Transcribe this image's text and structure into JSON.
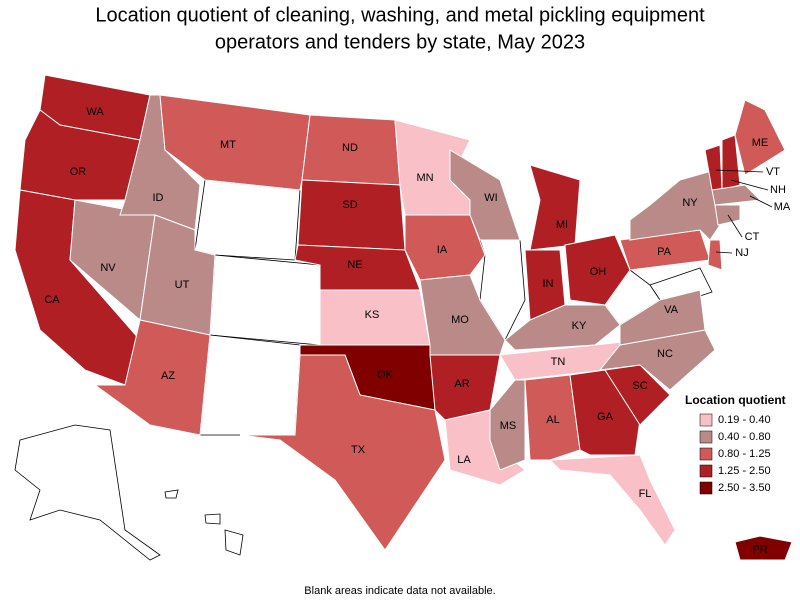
{
  "title": [
    "Location quotient of cleaning, washing, and metal pickling equipment",
    "operators and tenders by state, May 2023"
  ],
  "legend": {
    "title": "Location quotient",
    "items": [
      {
        "label": "0.19 - 0.40",
        "color": "#f9c0c7"
      },
      {
        "label": "0.40 - 0.80",
        "color": "#b98a88"
      },
      {
        "label": "0.80 - 1.25",
        "color": "#d05a58"
      },
      {
        "label": "1.25 - 2.50",
        "color": "#b01f24"
      },
      {
        "label": "2.50 - 3.50",
        "color": "#800000"
      }
    ]
  },
  "states": [
    {
      "abbr": "WA",
      "bin": 3
    },
    {
      "abbr": "OR",
      "bin": 3
    },
    {
      "abbr": "CA",
      "bin": 3
    },
    {
      "abbr": "NV",
      "bin": 1
    },
    {
      "abbr": "ID",
      "bin": 1
    },
    {
      "abbr": "MT",
      "bin": 2
    },
    {
      "abbr": "UT",
      "bin": 1
    },
    {
      "abbr": "AZ",
      "bin": 2
    },
    {
      "abbr": "ND",
      "bin": 2
    },
    {
      "abbr": "SD",
      "bin": 3
    },
    {
      "abbr": "NE",
      "bin": 3
    },
    {
      "abbr": "KS",
      "bin": 0
    },
    {
      "abbr": "OK",
      "bin": 4
    },
    {
      "abbr": "TX",
      "bin": 2
    },
    {
      "abbr": "MN",
      "bin": 0
    },
    {
      "abbr": "IA",
      "bin": 2
    },
    {
      "abbr": "MO",
      "bin": 1
    },
    {
      "abbr": "AR",
      "bin": 3
    },
    {
      "abbr": "LA",
      "bin": 0
    },
    {
      "abbr": "WI",
      "bin": 1
    },
    {
      "abbr": "MI",
      "bin": 3
    },
    {
      "abbr": "IN",
      "bin": 3
    },
    {
      "abbr": "OH",
      "bin": 3
    },
    {
      "abbr": "KY",
      "bin": 1
    },
    {
      "abbr": "TN",
      "bin": 0
    },
    {
      "abbr": "MS",
      "bin": 1
    },
    {
      "abbr": "AL",
      "bin": 2
    },
    {
      "abbr": "GA",
      "bin": 3
    },
    {
      "abbr": "FL",
      "bin": 0
    },
    {
      "abbr": "SC",
      "bin": 3
    },
    {
      "abbr": "NC",
      "bin": 1
    },
    {
      "abbr": "VA",
      "bin": 1
    },
    {
      "abbr": "PA",
      "bin": 2
    },
    {
      "abbr": "NY",
      "bin": 1
    },
    {
      "abbr": "ME",
      "bin": 2
    },
    {
      "abbr": "VT",
      "bin": 3
    },
    {
      "abbr": "NH",
      "bin": 3
    },
    {
      "abbr": "MA",
      "bin": 1
    },
    {
      "abbr": "CT",
      "bin": 1
    },
    {
      "abbr": "NJ",
      "bin": 2
    },
    {
      "abbr": "PR",
      "bin": 4
    }
  ],
  "note": "Blank areas indicate data not available."
}
